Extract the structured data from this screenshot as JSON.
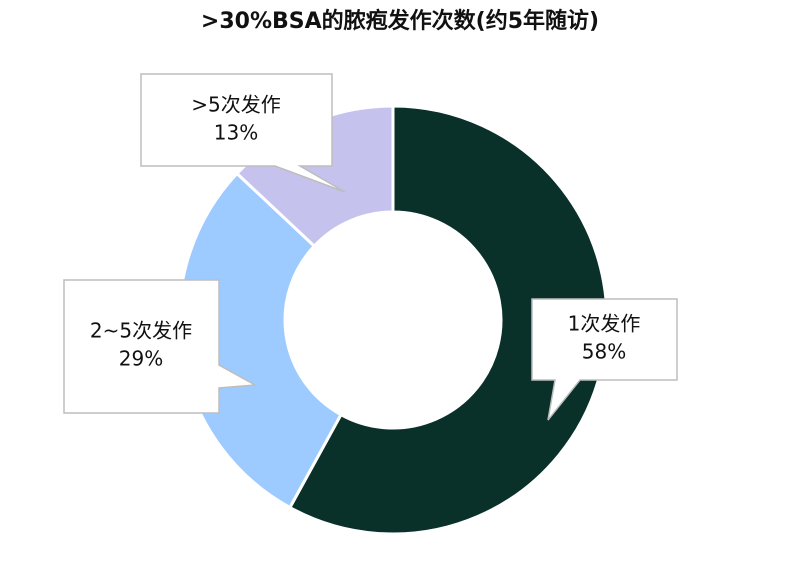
{
  "chart_data": {
    "type": "pie",
    "title": ">30%BSA的脓疱发作次数(约5年随访)",
    "categories": [
      "1次发作",
      "2~5次发作",
      ">5次发作"
    ],
    "values": [
      58,
      29,
      13
    ],
    "value_labels": [
      "58%",
      "29%",
      "13%"
    ],
    "colors": [
      "#0a302a",
      "#9ecbff",
      "#c5c3ee"
    ]
  }
}
